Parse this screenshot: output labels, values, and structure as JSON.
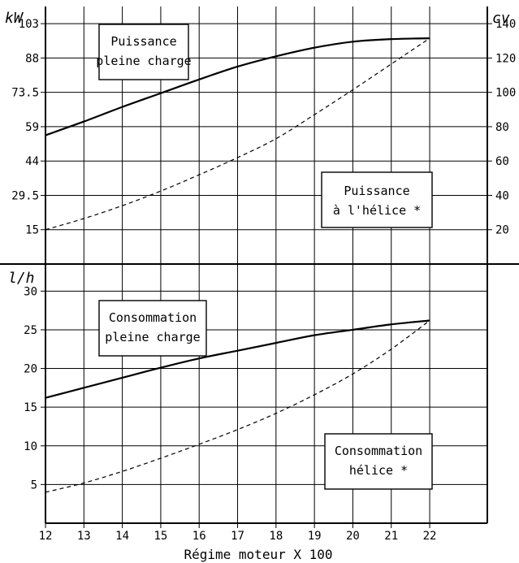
{
  "chart_data": [
    {
      "type": "line",
      "x": [
        12,
        13,
        14,
        15,
        16,
        17,
        18,
        19,
        20,
        21,
        22
      ],
      "xlabel": "Régime moteur X 100",
      "x_tick_labels": [
        "12",
        "13",
        "14",
        "15",
        "16",
        "17",
        "18",
        "19",
        "20",
        "21",
        "22"
      ],
      "xlim": [
        12,
        23.5
      ],
      "ylabel_left": "kW",
      "ylabel_right": "cv",
      "left_ticks": [
        "103",
        "88",
        "73.5",
        "59",
        "44",
        "29.5",
        "15"
      ],
      "right_ticks": [
        "140",
        "120",
        "100",
        "80",
        "60",
        "40",
        "20"
      ],
      "ylim_cv": [
        0,
        150
      ],
      "series": [
        {
          "name": "Puissance pleine charge",
          "style": "solid",
          "values_cv": [
            75,
            83,
            91.5,
            99.5,
            107.5,
            115,
            121,
            126,
            129.5,
            131,
            131.5
          ]
        },
        {
          "name": "Puissance à l'hélice *",
          "style": "dashed",
          "values_cv": [
            20,
            26.5,
            34,
            42.5,
            52,
            62,
            73,
            87,
            101.5,
            116.5,
            131.5
          ]
        }
      ],
      "grid": true
    },
    {
      "type": "line",
      "x": [
        12,
        13,
        14,
        15,
        16,
        17,
        18,
        19,
        20,
        21,
        22
      ],
      "xlabel": "Régime moteur X 100",
      "ylabel": "l/h",
      "y_ticks": [
        "30",
        "25",
        "20",
        "15",
        "10",
        "5"
      ],
      "ylim": [
        0,
        33.5
      ],
      "series": [
        {
          "name": "Consommation pleine charge",
          "style": "solid",
          "values": [
            16.2,
            17.5,
            18.8,
            20.1,
            21.3,
            22.3,
            23.3,
            24.3,
            25.0,
            25.7,
            26.2
          ]
        },
        {
          "name": "Consommation hélice *",
          "style": "dashed",
          "values": [
            4.0,
            5.2,
            6.7,
            8.4,
            10.2,
            12.1,
            14.2,
            16.6,
            19.3,
            22.5,
            26.2
          ]
        }
      ],
      "grid": true
    }
  ],
  "labels": {
    "unit_kw": "kW",
    "unit_cv": "cv",
    "unit_lh": "l/h",
    "box_full_power": [
      "Puissance",
      "pleine charge"
    ],
    "box_prop_power": [
      "Puissance",
      "à l'hélice *"
    ],
    "box_full_cons": [
      "Consommation",
      "pleine charge"
    ],
    "box_prop_cons": [
      "Consommation",
      "hélice *"
    ],
    "xlabel": "Régime moteur X 100"
  }
}
